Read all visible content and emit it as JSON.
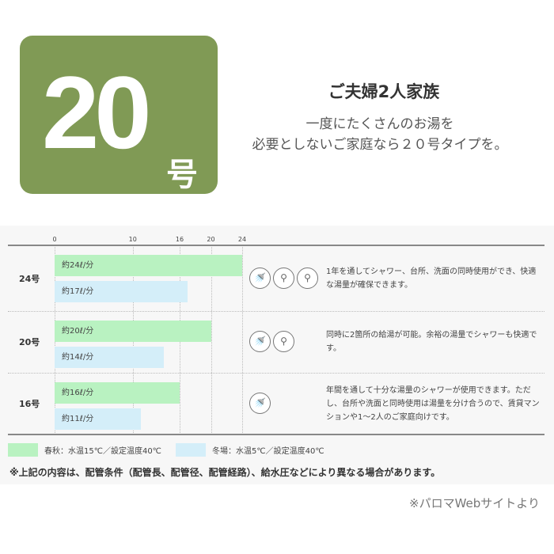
{
  "badge": {
    "number": "20",
    "suffix": "号"
  },
  "header": {
    "title": "ご夫婦2人家族",
    "subtitle_lines": [
      "一度にたくさんのお湯を",
      "必要としないご家庭なら２０号タイプを。"
    ]
  },
  "chart_data": {
    "type": "bar",
    "orientation": "horizontal",
    "xlim": [
      0,
      24
    ],
    "ticks": [
      0,
      10,
      16,
      20,
      24
    ],
    "categories": [
      "24号",
      "20号",
      "16号"
    ],
    "series": [
      {
        "name": "春秋：水温15℃／設定温度40℃",
        "color": "#b9f2c1",
        "values": [
          24,
          20,
          16
        ],
        "labels": [
          "約24ℓ/分",
          "約20ℓ/分",
          "約16ℓ/分"
        ]
      },
      {
        "name": "冬場：水温5℃／設定温度40℃",
        "color": "#d4eef9",
        "values": [
          17,
          14,
          11
        ],
        "labels": [
          "約17ℓ/分",
          "約14ℓ/分",
          "約11ℓ/分"
        ]
      }
    ],
    "grid": true,
    "legend": "bottom-left",
    "rows": [
      {
        "icons": [
          "shower-icon",
          "faucet-icon",
          "faucet-icon"
        ],
        "desc": "1年を通してシャワー、台所、洗面の同時使用ができ、快適な湯量が確保できます。"
      },
      {
        "icons": [
          "shower-icon",
          "faucet-icon"
        ],
        "desc": "同時に2箇所の給湯が可能。余裕の湯量でシャワーも快適です。"
      },
      {
        "icons": [
          "shower-icon"
        ],
        "desc": "年間を通して十分な湯量のシャワーが使用できます。ただし、台所や洗面と同時使用は湯量を分け合うので、賃貸マンションや1〜2人のご家庭向けです。"
      }
    ]
  },
  "note": "※上記の内容は、配管条件（配管長、配管径、配管経路）、給水圧などにより異なる場合があります。",
  "source": "※パロマWebサイトより",
  "colors": {
    "badge": "#809a55"
  }
}
